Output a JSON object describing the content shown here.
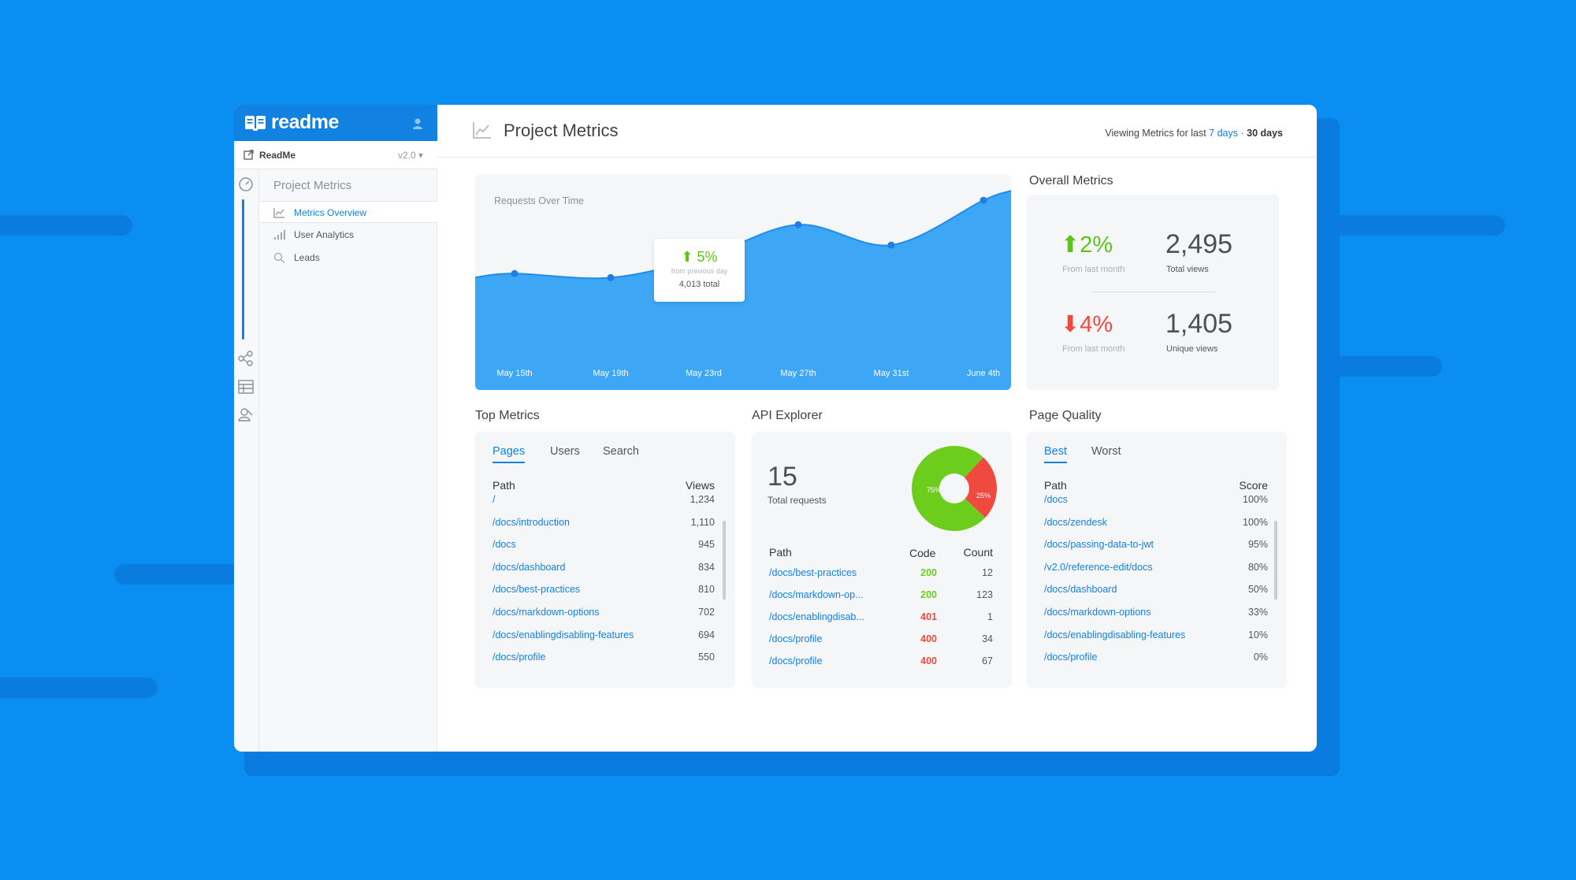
{
  "brand": {
    "name": "readme"
  },
  "project": {
    "name": "ReadMe",
    "version": "v2.0 ▾"
  },
  "subnav": {
    "title": "Project Metrics",
    "items": [
      {
        "label": "Metrics Overview",
        "icon": "line-chart-icon",
        "active": true
      },
      {
        "label": "User Analytics",
        "icon": "bar-chart-icon",
        "active": false
      },
      {
        "label": "Leads",
        "icon": "search-icon",
        "active": false
      }
    ]
  },
  "header": {
    "title": "Project Metrics",
    "viewing_prefix": "Viewing Metrics for last ",
    "range_7": "7 days",
    "separator": " · ",
    "range_30": "30 days"
  },
  "chart_data": {
    "type": "area",
    "title": "Requests Over Time",
    "x": [
      "May 15th",
      "May 19th",
      "May 23rd",
      "May 27th",
      "May 31st",
      "June 4th"
    ],
    "tick_labels": [
      "May 15th",
      "May 19th",
      "May 23rd",
      "May 27th",
      "May 31st",
      "June 4th"
    ],
    "series": [
      {
        "name": "Requests",
        "values": [
          15,
          13,
          23,
          39,
          29,
          51
        ],
        "color": "#3ea7f5"
      }
    ],
    "ylim": [
      0,
      60
    ],
    "grid": false,
    "tooltip": {
      "percent": "⬆ 5%",
      "subtext": "from previous day",
      "total": "4,013 total"
    }
  },
  "overall": {
    "title": "Overall Metrics",
    "pct_up": "⬆2%",
    "pct_up_label": "From last month",
    "total_views": "2,495",
    "total_views_label": "Total views",
    "pct_down": "⬇4%",
    "pct_down_label": "From last month",
    "unique_views": "1,405",
    "unique_views_label": "Unique views"
  },
  "top_metrics": {
    "title": "Top Metrics",
    "tabs": [
      "Pages",
      "Users",
      "Search"
    ],
    "col_path": "Path",
    "col_views": "Views",
    "rows": [
      {
        "path": "/",
        "views": "1,234"
      },
      {
        "path": "/docs/introduction",
        "views": "1,110"
      },
      {
        "path": "/docs",
        "views": "945"
      },
      {
        "path": "/docs/dashboard",
        "views": "834"
      },
      {
        "path": "/docs/best-practices",
        "views": "810"
      },
      {
        "path": "/docs/markdown-options",
        "views": "702"
      },
      {
        "path": "/docs/enablingdisabling-features",
        "views": "694"
      },
      {
        "path": "/docs/profile",
        "views": "550"
      }
    ]
  },
  "api_explorer": {
    "title": "API Explorer",
    "total": "15",
    "total_label": "Total requests",
    "pie": {
      "success_pct": 75,
      "success_label": "75%",
      "error_pct": 25,
      "error_label": "25%",
      "success_color": "#6dcd1c",
      "error_color": "#f0493e"
    },
    "col_path": "Path",
    "col_code": "Code",
    "col_count": "Count",
    "rows": [
      {
        "path": "/docs/best-practices",
        "code": "200",
        "count": "12"
      },
      {
        "path": "/docs/markdown-op...",
        "code": "200",
        "count": "123"
      },
      {
        "path": "/docs/enablingdisab...",
        "code": "401",
        "count": "1"
      },
      {
        "path": "/docs/profile",
        "code": "400",
        "count": "34"
      },
      {
        "path": "/docs/profile",
        "code": "400",
        "count": "67"
      }
    ]
  },
  "page_quality": {
    "title": "Page Quality",
    "tabs": [
      "Best",
      "Worst"
    ],
    "col_path": "Path",
    "col_score": "Score",
    "rows": [
      {
        "path": "/docs",
        "score": "100%"
      },
      {
        "path": "/docs/zendesk",
        "score": "100%"
      },
      {
        "path": "/docs/passing-data-to-jwt",
        "score": "95%"
      },
      {
        "path": "/v2.0/reference-edit/docs",
        "score": "80%"
      },
      {
        "path": "/docs/dashboard",
        "score": "50%"
      },
      {
        "path": "/docs/markdown-options",
        "score": "33%"
      },
      {
        "path": "/docs/enablingdisabling-features",
        "score": "10%"
      },
      {
        "path": "/docs/profile",
        "score": "0%"
      }
    ]
  },
  "colors": {
    "accent": "#1182e2",
    "background": "#0b8ef2",
    "success": "#6dcd1c",
    "error": "#f0493e"
  }
}
